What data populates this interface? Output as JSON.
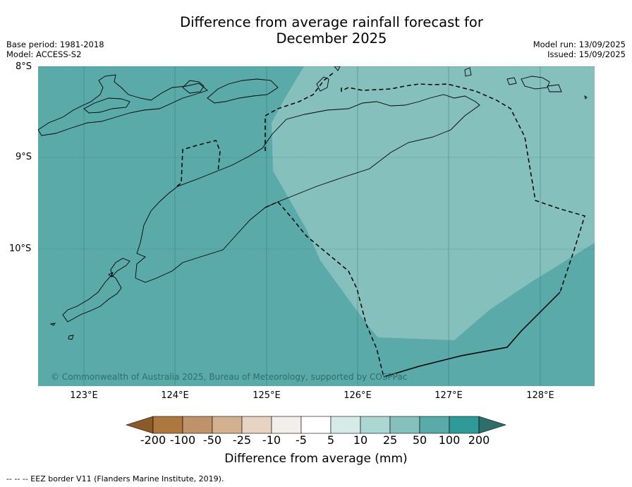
{
  "title_line1": "Difference from average rainfall forecast for",
  "title_line2": "December 2025",
  "base_period": "Base period: 1981-2018",
  "model": "Model: ACCESS-S2",
  "model_run": "Model run: 13/09/2025",
  "issued": "Issued: 15/09/2025",
  "lat_labels": [
    "8°S",
    "9°S",
    "10°S"
  ],
  "lon_labels": [
    "123°E",
    "124°E",
    "125°E",
    "126°E",
    "127°E",
    "128°E"
  ],
  "copyright": "© Commonwealth of Australia 2025, Bureau of Meteorology, supported by COSPPac",
  "colorbar": {
    "title": "Difference from average (mm)",
    "ticks": [
      "-200",
      "-100",
      "-50",
      "-25",
      "-10",
      "-5",
      "5",
      "10",
      "25",
      "50",
      "100",
      "200"
    ],
    "colors": [
      "#8a5a28",
      "#ad7840",
      "#bf926a",
      "#d3b08e",
      "#e6d3c1",
      "#f1eeec",
      "#ffffff",
      "#d6ebe7",
      "#acd6d1",
      "#86c0bd",
      "#5aaaaa",
      "#2e9b98",
      "#2d6e6b"
    ]
  },
  "footer": "--  --  -- EEZ border V11 (Flanders Marine Institute, 2019).",
  "region_colors": {
    "main": "#5aaaaa",
    "lighter": "#86c0bd",
    "land_outline": "#000000",
    "grid": "#2e6e6e"
  }
}
